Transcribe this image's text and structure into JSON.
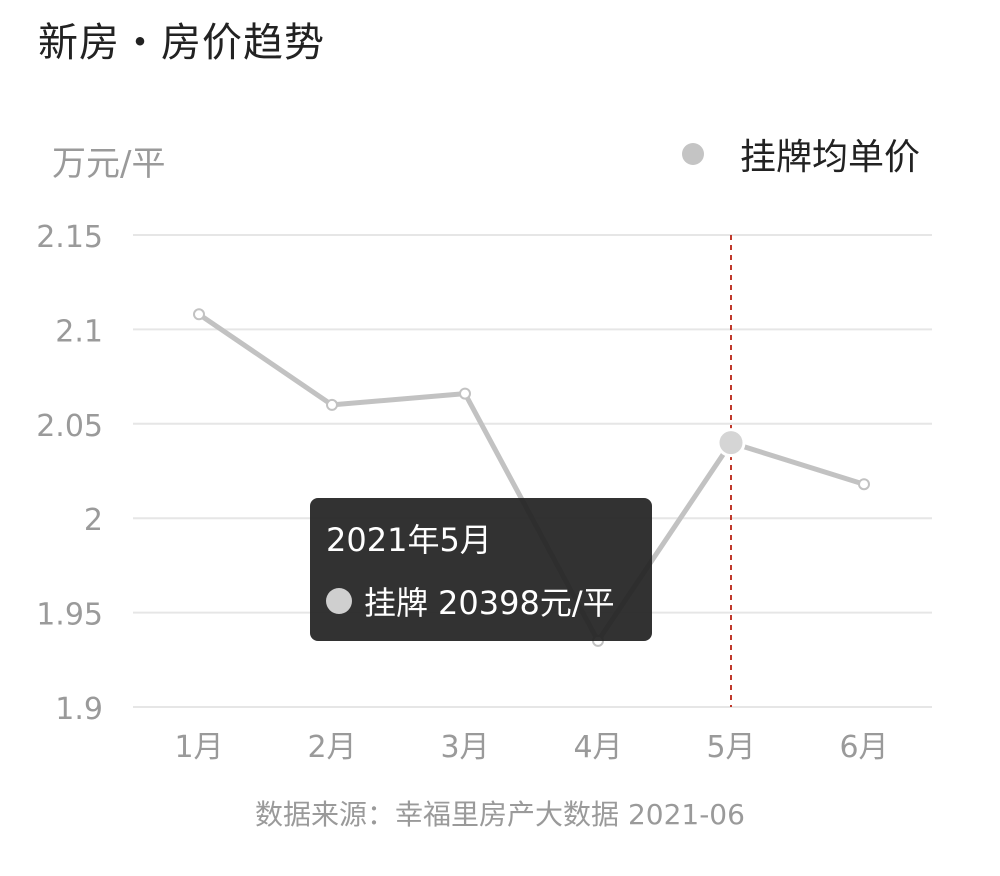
{
  "page": {
    "title": "新房・房价趋势",
    "source": "数据来源：幸福里房产大数据 2021-06"
  },
  "chart_data": {
    "type": "line",
    "title": "",
    "ylabel": "万元/平",
    "xlabel": "",
    "categories": [
      "1月",
      "2月",
      "3月",
      "4月",
      "5月",
      "6月"
    ],
    "series": [
      {
        "name": "挂牌均单价",
        "values": [
          2.108,
          2.06,
          2.066,
          1.935,
          2.04,
          2.018
        ]
      }
    ],
    "ylim": [
      1.9,
      2.15
    ],
    "yticks": [
      {
        "value": 2.15,
        "label": "2.15"
      },
      {
        "value": 2.1,
        "label": "2.1"
      },
      {
        "value": 2.05,
        "label": "2.05"
      },
      {
        "value": 2.0,
        "label": "2"
      },
      {
        "value": 1.95,
        "label": "1.95"
      },
      {
        "value": 1.9,
        "label": "1.9"
      }
    ],
    "grid": true,
    "legend_position": "top-right",
    "highlight_index": 4,
    "colors": {
      "line": "#c2c2c2",
      "marker_active": "#d5d5d5",
      "crosshair": "#c0392b",
      "grid": "#e6e6e6",
      "axis_text": "#9a9a9a"
    }
  },
  "tooltip": {
    "title": "2021年5月",
    "label": "挂牌",
    "value": "20398元/平"
  }
}
